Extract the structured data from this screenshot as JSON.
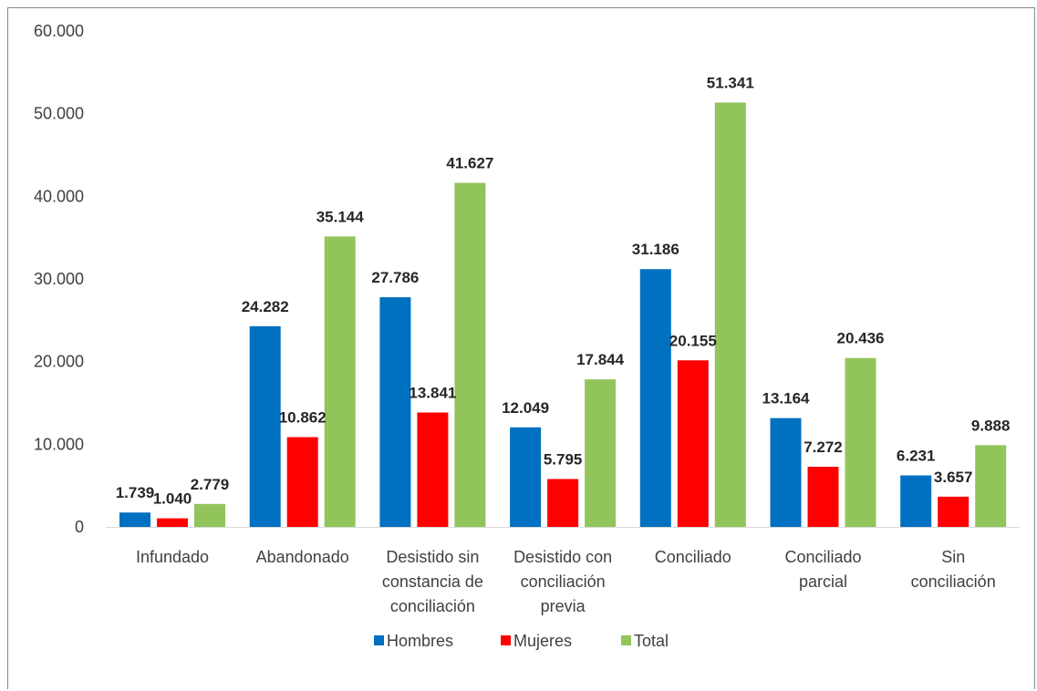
{
  "chart_data": {
    "type": "bar",
    "categories": [
      [
        "Infundado"
      ],
      [
        "Abandonado"
      ],
      [
        "Desistido sin",
        "constancia de",
        "conciliación"
      ],
      [
        "Desistido con",
        "conciliación",
        "previa"
      ],
      [
        "Conciliado"
      ],
      [
        "Conciliado",
        "parcial"
      ],
      [
        "Sin",
        "conciliación"
      ]
    ],
    "series": [
      {
        "name": "Hombres",
        "color": "#0070c0",
        "values": [
          1739,
          24282,
          27786,
          12049,
          31186,
          13164,
          6231
        ],
        "labels": [
          "1.739",
          "24.282",
          "27.786",
          "12.049",
          "31.186",
          "13.164",
          "6.231"
        ]
      },
      {
        "name": "Mujeres",
        "color": "#ff0000",
        "values": [
          1040,
          10862,
          13841,
          5795,
          20155,
          7272,
          3657
        ],
        "labels": [
          "1.040",
          "10.862",
          "13.841",
          "5.795",
          "20.155",
          "7.272",
          "3.657"
        ]
      },
      {
        "name": "Total",
        "color": "#92c45c",
        "values": [
          2779,
          35144,
          41627,
          17844,
          51341,
          20436,
          9888
        ],
        "labels": [
          "2.779",
          "35.144",
          "41.627",
          "17.844",
          "51.341",
          "20.436",
          "9.888"
        ]
      }
    ],
    "ylim": [
      0,
      60000
    ],
    "yticks": [
      0,
      10000,
      20000,
      30000,
      40000,
      50000,
      60000
    ],
    "ytick_labels": [
      "0",
      "10.000",
      "20.000",
      "30.000",
      "40.000",
      "50.000",
      "60.000"
    ],
    "grid": false,
    "legend_position": "bottom",
    "title": "",
    "xlabel": "",
    "ylabel": ""
  }
}
